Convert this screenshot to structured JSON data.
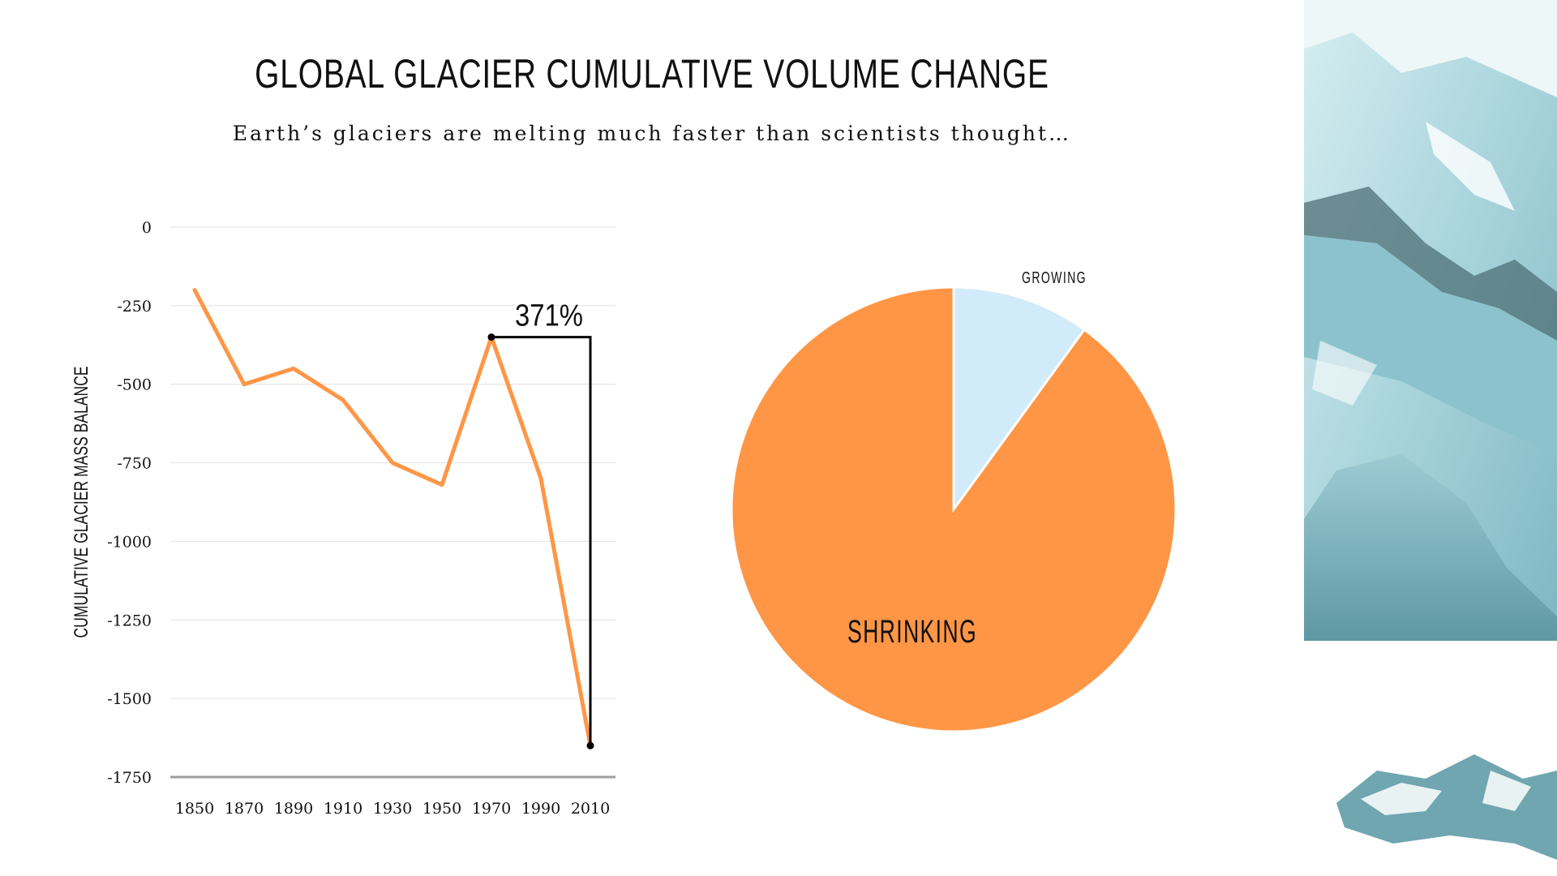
{
  "slide": {
    "title": "GLOBAL GLACIER CUMULATIVE VOLUME CHANGE",
    "subtitle": "Earth’s glaciers are melting much faster than scientists thought…",
    "accent_color": "#FF9646",
    "light_color": "#D2EBFA",
    "decorative_image": "glacier-ice-photo"
  },
  "chart_data": [
    {
      "type": "line",
      "ylabel": "CUMULATIVE GLACIER MASS BALANCE",
      "xlabel": "",
      "x": [
        1850,
        1870,
        1890,
        1910,
        1930,
        1950,
        1970,
        1990,
        2010
      ],
      "series": [
        {
          "values": [
            -200,
            -500,
            -450,
            -550,
            -750,
            -820,
            -350,
            -800,
            -1650
          ],
          "color": "#FF9646"
        }
      ],
      "ylim": [
        -1750,
        0
      ],
      "yticks": [
        0,
        -250,
        -500,
        -750,
        -1000,
        -1250,
        -1500,
        -1750
      ],
      "grid": true,
      "annotation": {
        "text": "371%",
        "from_x": 1970,
        "to_x": 2010
      }
    },
    {
      "type": "pie",
      "labels": [
        "GROWING",
        "SHRINKING"
      ],
      "values": [
        10,
        90
      ],
      "colors": [
        "#D2EBFA",
        "#FF9646"
      ]
    }
  ]
}
